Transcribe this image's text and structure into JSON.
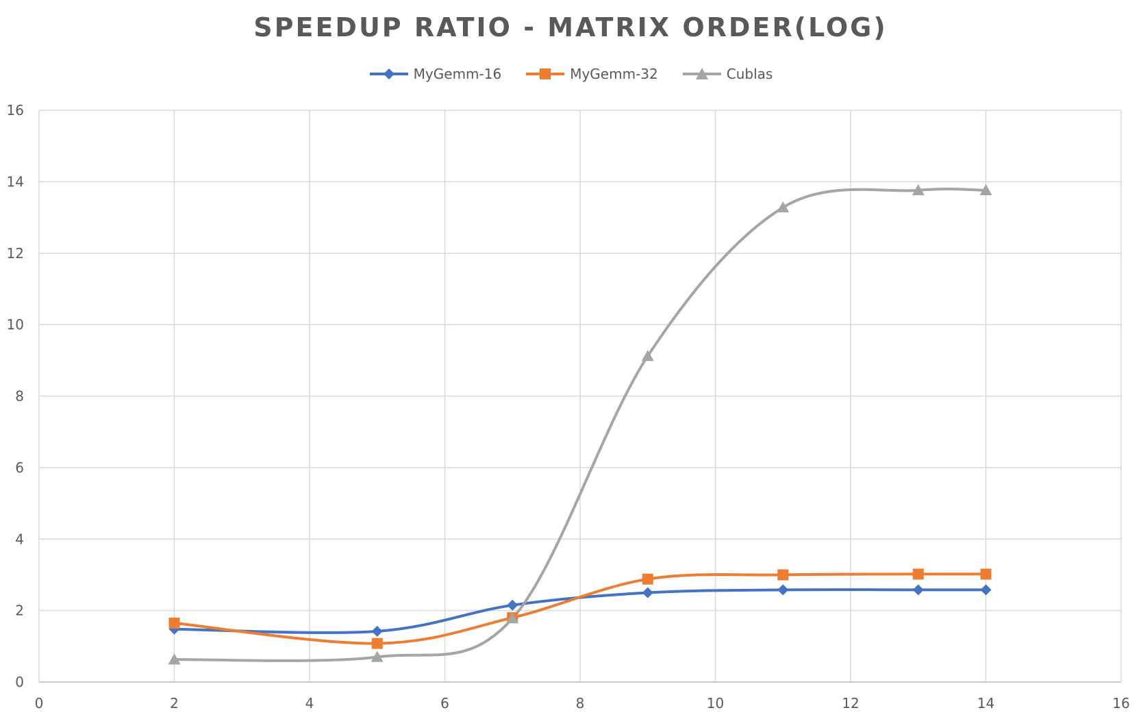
{
  "chart_data": {
    "type": "line",
    "title": "SPEEDUP RATIO - MATRIX ORDER(LOG)",
    "xlabel": "",
    "ylabel": "",
    "xlim": [
      0,
      16
    ],
    "ylim": [
      0,
      16
    ],
    "xticks": [
      0,
      2,
      4,
      6,
      8,
      10,
      12,
      14,
      16
    ],
    "yticks": [
      0,
      2,
      4,
      6,
      8,
      10,
      12,
      14,
      16
    ],
    "grid": true,
    "legend_position": "top",
    "smooth": true,
    "series": [
      {
        "name": "MyGemm-16",
        "color": "#4472C4",
        "marker": "diamond",
        "x": [
          2,
          5,
          7,
          9,
          11,
          13,
          14
        ],
        "y": [
          1.48,
          1.42,
          2.15,
          2.5,
          2.58,
          2.58,
          2.58
        ]
      },
      {
        "name": "MyGemm-32",
        "color": "#ED7D31",
        "marker": "square",
        "x": [
          2,
          5,
          7,
          9,
          11,
          13,
          14
        ],
        "y": [
          1.65,
          1.08,
          1.8,
          2.88,
          3.0,
          3.02,
          3.02
        ]
      },
      {
        "name": "Cublas",
        "color": "#A5A5A5",
        "marker": "triangle",
        "x": [
          2,
          5,
          7,
          9,
          11,
          13,
          14
        ],
        "y": [
          0.63,
          0.7,
          1.78,
          9.12,
          13.28,
          13.76,
          13.76
        ]
      }
    ]
  }
}
